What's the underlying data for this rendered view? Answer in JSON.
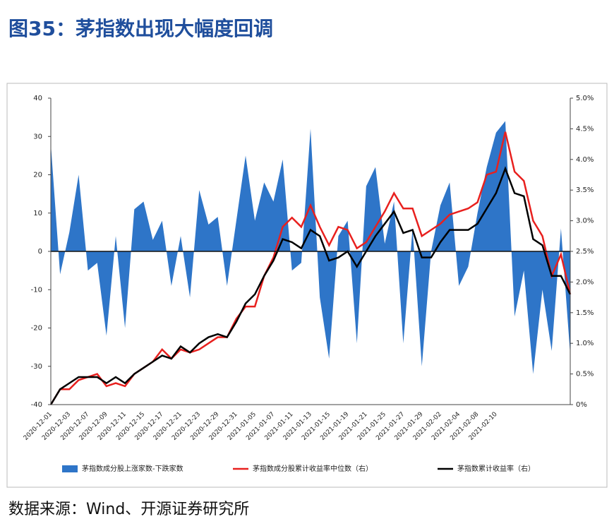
{
  "chart_data": {
    "type": "area-line",
    "title": "图35：茅指数出现大幅度回调",
    "source": "数据来源：Wind、开源证券研究所",
    "categories": [
      "2020-12-01",
      null,
      "2020-12-03",
      null,
      "2020-12-07",
      null,
      "2020-12-09",
      null,
      "2020-12-11",
      null,
      "2020-12-15",
      null,
      "2020-12-17",
      null,
      "2020-12-21",
      null,
      "2020-12-23",
      null,
      "2020-12-29",
      null,
      "2020-12-31",
      null,
      "2021-01-05",
      null,
      "2021-01-07",
      null,
      "2021-01-11",
      null,
      "2021-01-13",
      null,
      "2021-01-15",
      null,
      "2021-01-19",
      null,
      "2021-01-21",
      null,
      "2021-01-25",
      null,
      "2021-01-27",
      null,
      "2021-01-29",
      null,
      "2021-02-02",
      null,
      "2021-02-04",
      null,
      "2021-02-08",
      null,
      "2021-02-10",
      null,
      null,
      null,
      null,
      null,
      null,
      null,
      null
    ],
    "series": [
      {
        "name": "茅指数成分股上涨家数-下跌家数",
        "color": "#2e75c8",
        "kind": "area",
        "values": [
          28,
          -6,
          5,
          20,
          -5,
          -3,
          -22,
          4,
          -20,
          11,
          13,
          3,
          8,
          -9,
          4,
          -12,
          16,
          7,
          9,
          -9,
          8,
          25,
          8,
          18,
          13,
          24,
          -5,
          -3,
          32,
          -12,
          -28,
          4,
          8,
          -24,
          17,
          22,
          2,
          13,
          -24,
          6,
          -30,
          0,
          12,
          18,
          -9,
          -4,
          10,
          22,
          31,
          34,
          -17,
          -5,
          -32,
          -10,
          -26,
          6,
          -27
        ]
      },
      {
        "name": "茅指数成分股累计收益率中位数（右）",
        "color": "#e8201e",
        "kind": "line",
        "axis": "y2",
        "values": [
          0.0,
          0.25,
          0.25,
          0.4,
          0.45,
          0.5,
          0.3,
          0.35,
          0.3,
          0.5,
          0.6,
          0.7,
          0.9,
          0.75,
          0.9,
          0.85,
          0.9,
          1.0,
          1.1,
          1.1,
          1.4,
          1.6,
          1.6,
          2.1,
          2.4,
          2.9,
          3.05,
          2.9,
          3.25,
          2.9,
          2.6,
          2.9,
          2.85,
          2.55,
          2.65,
          2.9,
          3.15,
          3.45,
          3.2,
          3.2,
          2.75,
          2.85,
          2.95,
          3.1,
          3.15,
          3.2,
          3.3,
          3.75,
          3.8,
          4.45,
          3.8,
          3.65,
          3.0,
          2.75,
          2.1,
          2.45,
          1.8
        ]
      },
      {
        "name": "茅指数累计收益率（右）",
        "color": "#000000",
        "kind": "line",
        "axis": "y2",
        "values": [
          0.0,
          0.25,
          0.35,
          0.45,
          0.45,
          0.45,
          0.35,
          0.45,
          0.35,
          0.5,
          0.6,
          0.7,
          0.8,
          0.75,
          0.95,
          0.85,
          1.0,
          1.1,
          1.15,
          1.1,
          1.35,
          1.65,
          1.8,
          2.1,
          2.35,
          2.7,
          2.65,
          2.55,
          2.85,
          2.75,
          2.35,
          2.4,
          2.5,
          2.25,
          2.5,
          2.75,
          2.95,
          3.15,
          2.8,
          2.85,
          2.4,
          2.4,
          2.65,
          2.85,
          2.85,
          2.85,
          2.95,
          3.2,
          3.45,
          3.85,
          3.45,
          3.4,
          2.7,
          2.6,
          2.1,
          2.1,
          1.8
        ]
      }
    ],
    "ylim": [
      -40,
      40
    ],
    "yticks": [
      -40,
      -30,
      -20,
      -10,
      0,
      10,
      20,
      30,
      40
    ],
    "y2lim": [
      0,
      5
    ],
    "y2ticks": [
      {
        "value": 0,
        "label": "0%"
      },
      {
        "value": 0.5,
        "label": "0.5%"
      },
      {
        "value": 1,
        "label": "1.0%"
      },
      {
        "value": 1.5,
        "label": "1.5%"
      },
      {
        "value": 2,
        "label": "2.0%"
      },
      {
        "value": 2.5,
        "label": "2.5%"
      },
      {
        "value": 3,
        "label": "3.0%"
      },
      {
        "value": 3.5,
        "label": "3.5%"
      },
      {
        "value": 4,
        "label": "4.0%"
      },
      {
        "value": 4.5,
        "label": "4.5%"
      },
      {
        "value": 5,
        "label": "5.0%"
      }
    ]
  }
}
